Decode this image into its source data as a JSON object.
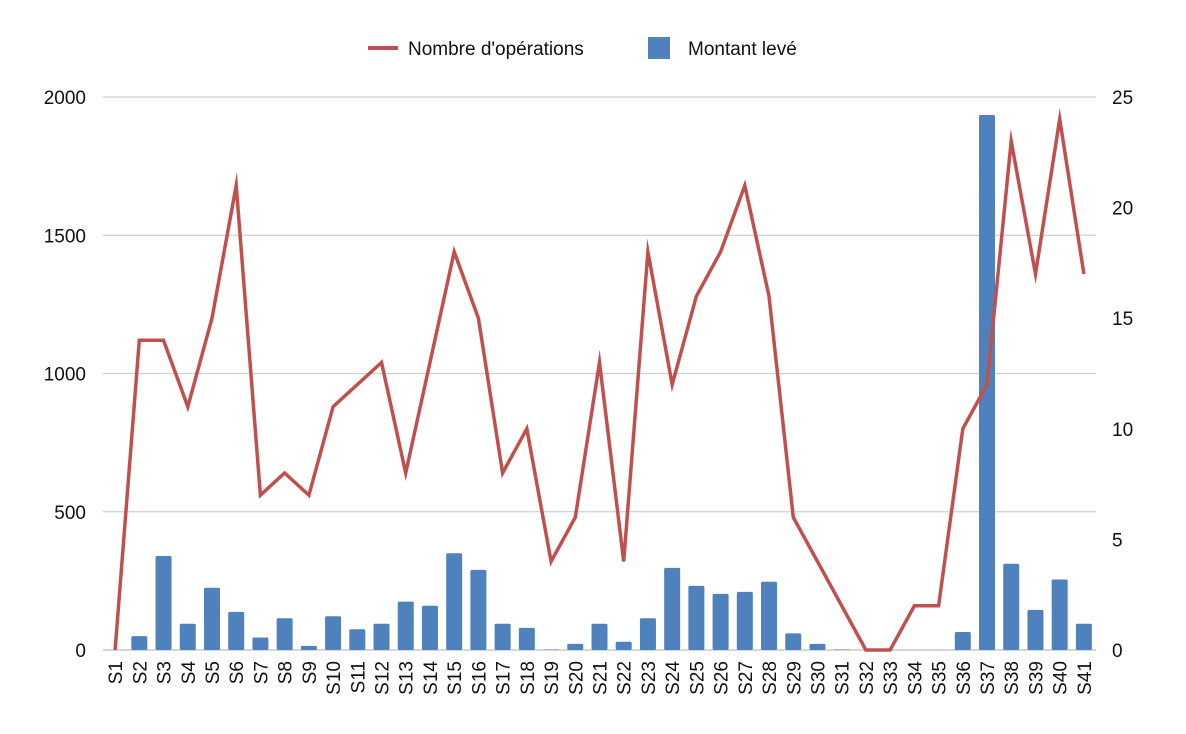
{
  "chart_data": {
    "type": "bar+line",
    "title": "",
    "categories": [
      "S1",
      "S2",
      "S3",
      "S4",
      "S5",
      "S6",
      "S7",
      "S8",
      "S9",
      "S10",
      "S11",
      "S12",
      "S13",
      "S14",
      "S15",
      "S16",
      "S17",
      "S18",
      "S19",
      "S20",
      "S21",
      "S22",
      "S23",
      "S24",
      "S25",
      "S26",
      "S27",
      "S28",
      "S29",
      "S30",
      "S31",
      "S32",
      "S33",
      "S34",
      "S35",
      "S36",
      "S37",
      "S38",
      "S39",
      "S40",
      "S41"
    ],
    "series": [
      {
        "name": "Montant levé",
        "type": "bar",
        "axis": "left",
        "color": "#4f81bd",
        "values": [
          0,
          50,
          340,
          95,
          225,
          138,
          45,
          115,
          15,
          122,
          75,
          95,
          175,
          160,
          350,
          290,
          95,
          80,
          2,
          22,
          95,
          30,
          115,
          297,
          232,
          203,
          210,
          247,
          60,
          22,
          2,
          0,
          0,
          0,
          0,
          65,
          1935,
          312,
          145,
          255,
          95
        ]
      },
      {
        "name": "Nombre d'opérations",
        "type": "line",
        "axis": "right",
        "color": "#c0504d",
        "values": [
          0,
          14,
          14,
          11,
          15,
          21,
          7,
          8,
          7,
          11,
          12,
          13,
          8,
          13,
          18,
          15,
          8,
          10,
          4,
          6,
          13,
          4,
          18,
          12,
          16,
          18,
          21,
          16,
          6,
          4,
          2,
          0,
          0,
          2,
          2,
          10,
          12,
          23,
          17,
          24,
          17
        ]
      }
    ],
    "y_left": {
      "min": 0,
      "max": 2000,
      "ticks": [
        0,
        500,
        1000,
        1500,
        2000
      ]
    },
    "y_right": {
      "min": 0,
      "max": 25,
      "ticks": [
        0,
        5,
        10,
        15,
        20,
        25
      ]
    },
    "legend": {
      "position": "top-center",
      "items": [
        {
          "label": "Nombre d'opérations",
          "marker": "line",
          "color": "#c0504d"
        },
        {
          "label": "Montant levé",
          "marker": "square",
          "color": "#4f81bd"
        }
      ]
    },
    "grid": true,
    "xlabel": "",
    "ylabel": ""
  }
}
